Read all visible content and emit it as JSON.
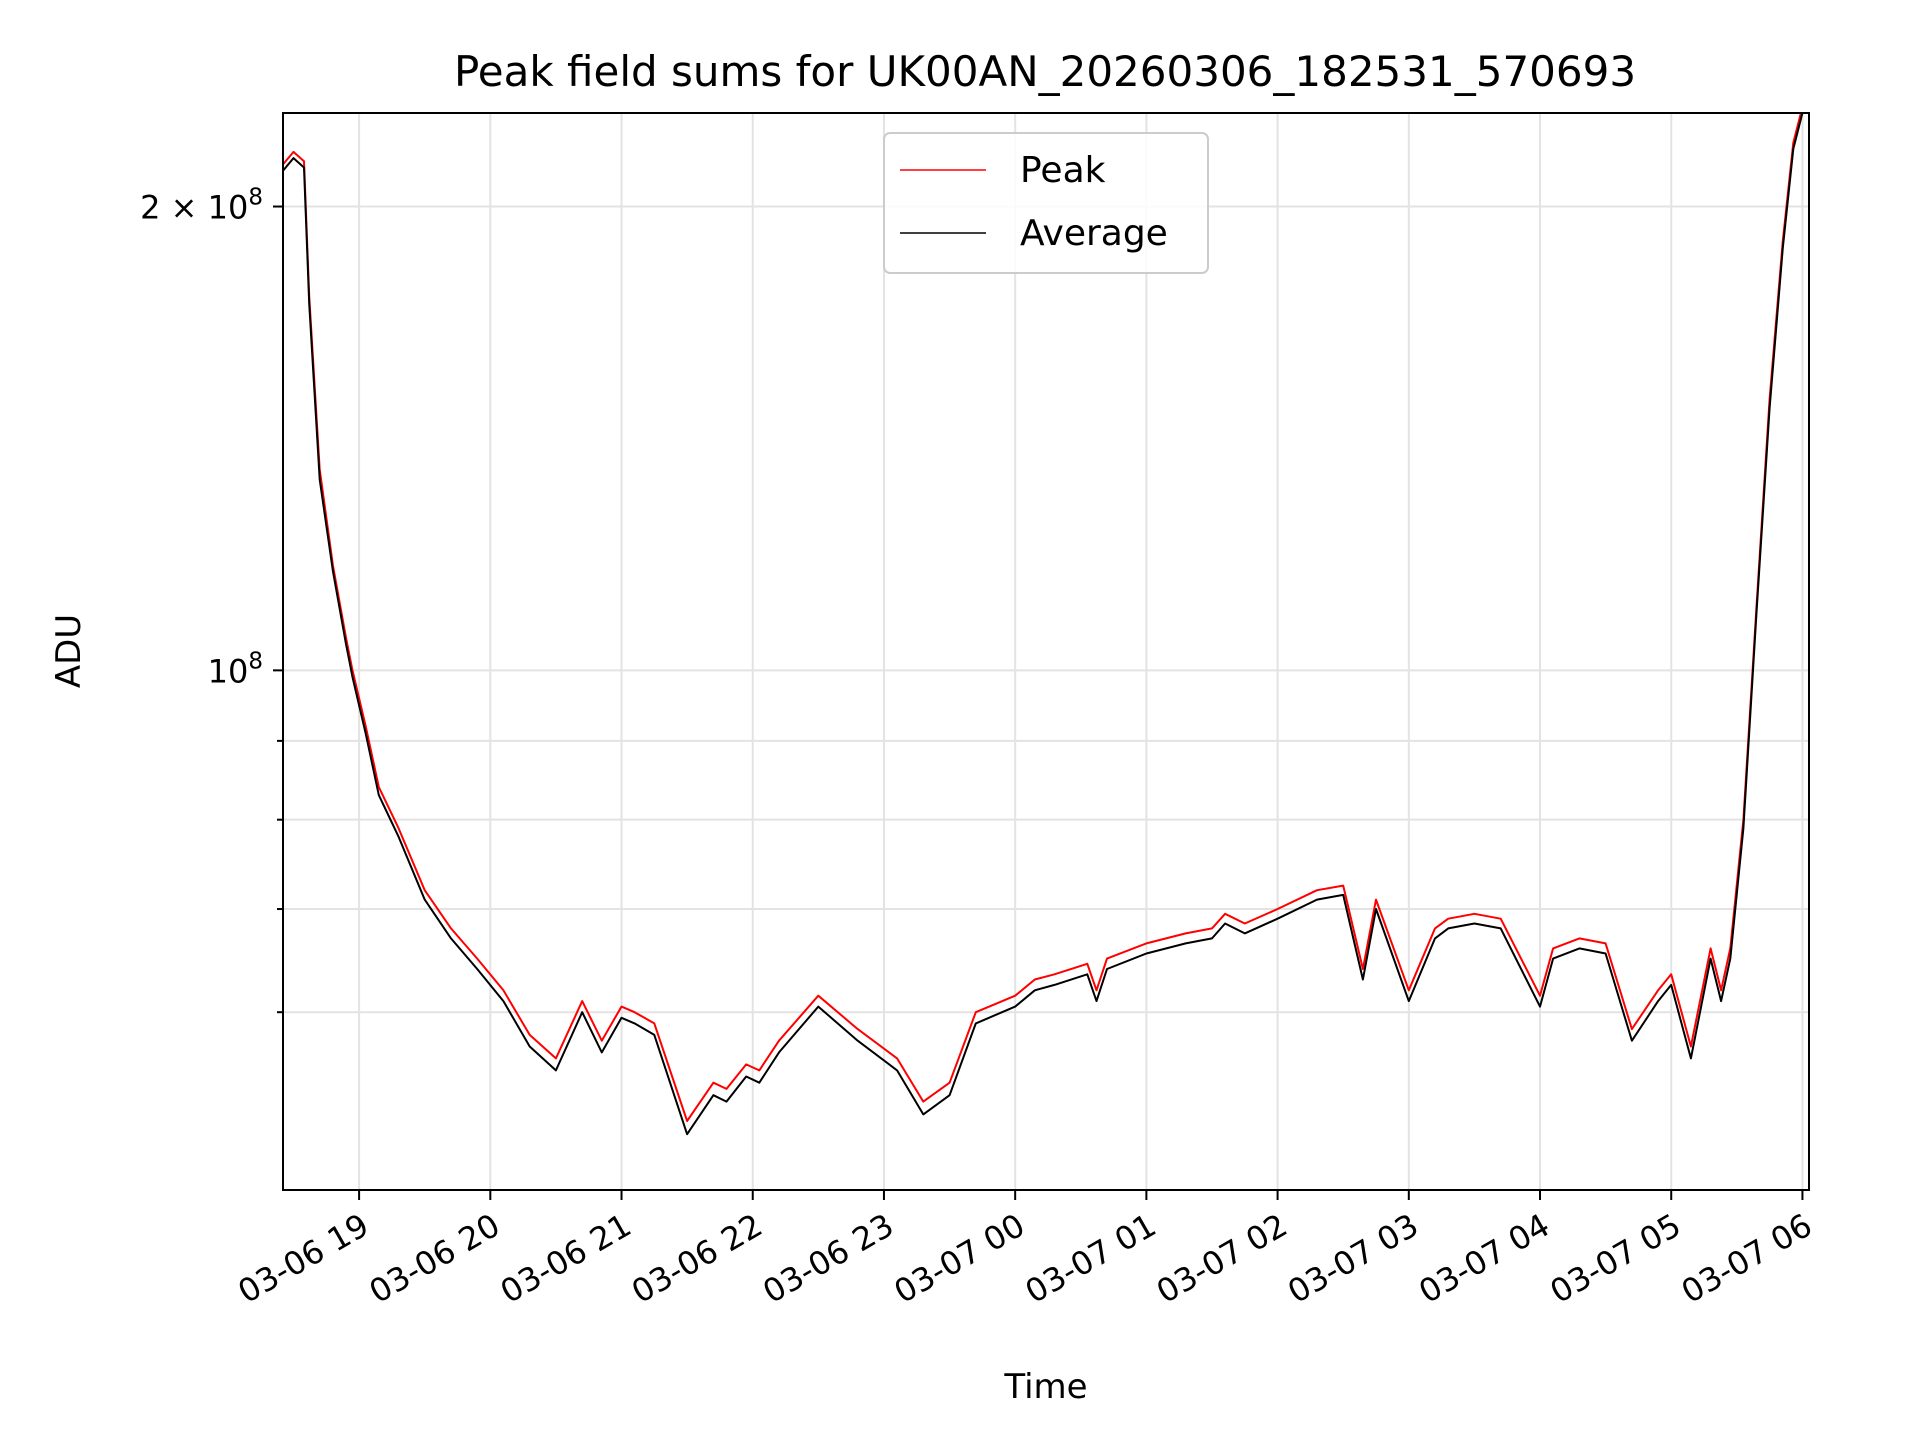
{
  "chart_data": {
    "type": "line",
    "title": "Peak field sums for UK00AN_20260306_182531_570693",
    "xlabel": "Time",
    "ylabel": "ADU",
    "yscale": "log",
    "ylim": [
      46000000,
      230000000
    ],
    "xlim_hours": [
      18.42,
      30.05
    ],
    "grid": true,
    "legend_position": "top-center",
    "x_ticks": [
      {
        "hour": 19,
        "label": "03-06 19"
      },
      {
        "hour": 20,
        "label": "03-06 20"
      },
      {
        "hour": 21,
        "label": "03-06 21"
      },
      {
        "hour": 22,
        "label": "03-06 22"
      },
      {
        "hour": 23,
        "label": "03-06 23"
      },
      {
        "hour": 24,
        "label": "03-07 00"
      },
      {
        "hour": 25,
        "label": "03-07 01"
      },
      {
        "hour": 26,
        "label": "03-07 02"
      },
      {
        "hour": 27,
        "label": "03-07 03"
      },
      {
        "hour": 28,
        "label": "03-07 04"
      },
      {
        "hour": 29,
        "label": "03-07 05"
      },
      {
        "hour": 30,
        "label": "03-07 06"
      }
    ],
    "y_major_ticks": [
      {
        "value": 100000000,
        "base": "10",
        "exp": "8",
        "prefix": ""
      },
      {
        "value": 200000000,
        "base": "10",
        "exp": "8",
        "prefix": "2 × "
      }
    ],
    "y_minor_ticks": [
      60000000,
      70000000,
      80000000,
      90000000
    ],
    "x": [
      18.42,
      18.5,
      18.58,
      18.62,
      18.7,
      18.8,
      18.9,
      18.95,
      19.05,
      19.15,
      19.3,
      19.5,
      19.7,
      19.9,
      20.1,
      20.3,
      20.5,
      20.7,
      20.85,
      21.0,
      21.1,
      21.25,
      21.5,
      21.7,
      21.8,
      21.95,
      22.05,
      22.2,
      22.5,
      22.8,
      23.1,
      23.3,
      23.5,
      23.7,
      24.0,
      24.15,
      24.3,
      24.55,
      24.62,
      24.7,
      25.0,
      25.3,
      25.5,
      25.6,
      25.75,
      26.0,
      26.3,
      26.5,
      26.65,
      26.75,
      27.0,
      27.2,
      27.3,
      27.5,
      27.7,
      28.0,
      28.1,
      28.3,
      28.5,
      28.7,
      28.9,
      29.0,
      29.15,
      29.3,
      29.38,
      29.45,
      29.55,
      29.65,
      29.75,
      29.85,
      29.93,
      30.0
    ],
    "series": [
      {
        "name": "Peak",
        "color": "#ff0000",
        "values": [
          213000000,
          217000000,
          214000000,
          175000000,
          135000000,
          117000000,
          105000000,
          100000000,
          92000000,
          84000000,
          79000000,
          72000000,
          68000000,
          65000000,
          62000000,
          58000000,
          56000000,
          61000000,
          57500000,
          60500000,
          60000000,
          59000000,
          51000000,
          54000000,
          53500000,
          55500000,
          55000000,
          57500000,
          61500000,
          58500000,
          56000000,
          52500000,
          54000000,
          60000000,
          61500000,
          63000000,
          63500000,
          64500000,
          62000000,
          65000000,
          66500000,
          67500000,
          68000000,
          69500000,
          68500000,
          70000000,
          72000000,
          72500000,
          64000000,
          71000000,
          62000000,
          68000000,
          69000000,
          69500000,
          69000000,
          61500000,
          66000000,
          67000000,
          66500000,
          58500000,
          62000000,
          63500000,
          57000000,
          66000000,
          62000000,
          66000000,
          80000000,
          110000000,
          150000000,
          190000000,
          220000000,
          232000000
        ]
      },
      {
        "name": "Average",
        "color": "#000000",
        "values": [
          211000000,
          215000000,
          212000000,
          173000000,
          133000000,
          116000000,
          104000000,
          99000000,
          91000000,
          83000000,
          78000000,
          71000000,
          67000000,
          64000000,
          61000000,
          57000000,
          55000000,
          60000000,
          56500000,
          59500000,
          59000000,
          58000000,
          50000000,
          53000000,
          52500000,
          54500000,
          54000000,
          56500000,
          60500000,
          57500000,
          55000000,
          51500000,
          53000000,
          59000000,
          60500000,
          62000000,
          62500000,
          63500000,
          61000000,
          64000000,
          65500000,
          66500000,
          67000000,
          68500000,
          67500000,
          69000000,
          71000000,
          71500000,
          63000000,
          70000000,
          61000000,
          67000000,
          68000000,
          68500000,
          68000000,
          60500000,
          65000000,
          66000000,
          65500000,
          57500000,
          61000000,
          62500000,
          56000000,
          65000000,
          61000000,
          65000000,
          79000000,
          109000000,
          148000000,
          188000000,
          218000000,
          230000000
        ]
      }
    ]
  }
}
